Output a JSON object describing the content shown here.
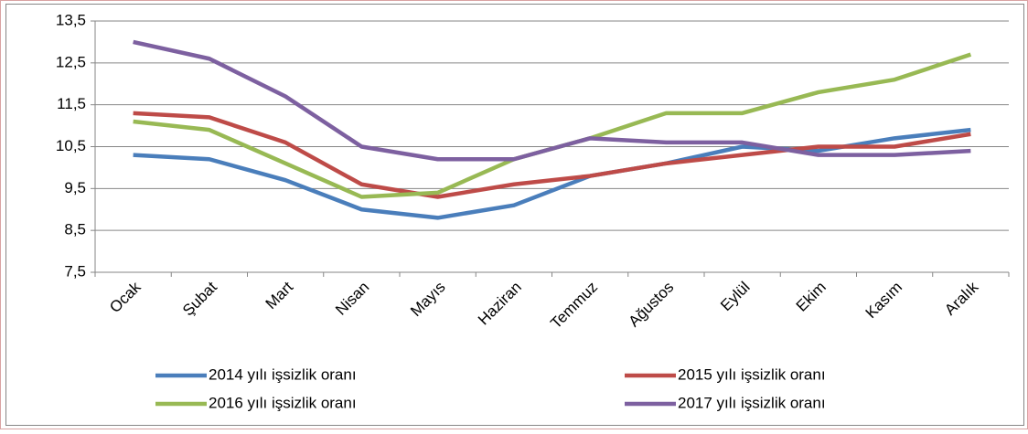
{
  "chart_data": {
    "type": "line",
    "categories": [
      "Ocak",
      "Şubat",
      "Mart",
      "Nisan",
      "Mayıs",
      "Haziran",
      "Temmuz",
      "Ağustos",
      "Eylül",
      "Ekim",
      "Kasım",
      "Aralık"
    ],
    "series": [
      {
        "name": "2014 yılı işsizlik oranı",
        "color": "#4a7ebb",
        "values": [
          10.3,
          10.2,
          9.7,
          9.0,
          8.8,
          9.1,
          9.8,
          10.1,
          10.5,
          10.4,
          10.7,
          10.9
        ]
      },
      {
        "name": "2015 yılı işsizlik oranı",
        "color": "#be4b48",
        "values": [
          11.3,
          11.2,
          10.6,
          9.6,
          9.3,
          9.6,
          9.8,
          10.1,
          10.3,
          10.5,
          10.5,
          10.8
        ]
      },
      {
        "name": "2016 yılı işsizlik oranı",
        "color": "#98b954",
        "values": [
          11.1,
          10.9,
          10.1,
          9.3,
          9.4,
          10.2,
          10.7,
          11.3,
          11.3,
          11.8,
          12.1,
          12.7
        ]
      },
      {
        "name": "2017 yılı işsizlik oranı",
        "color": "#7d60a0",
        "values": [
          13.0,
          12.6,
          11.7,
          10.5,
          10.2,
          10.2,
          10.7,
          10.6,
          10.6,
          10.3,
          10.3,
          10.4
        ]
      }
    ],
    "ylim": [
      7.5,
      13.5
    ],
    "yticks": [
      {
        "value": 7.5,
        "label": "7,5"
      },
      {
        "value": 8.5,
        "label": "8,5"
      },
      {
        "value": 9.5,
        "label": "9,5"
      },
      {
        "value": 10.5,
        "label": "10,5"
      },
      {
        "value": 11.5,
        "label": "11,5"
      },
      {
        "value": 12.5,
        "label": "12,5"
      },
      {
        "value": 13.5,
        "label": "13,5"
      }
    ],
    "grid": true,
    "legend": "bottom"
  }
}
